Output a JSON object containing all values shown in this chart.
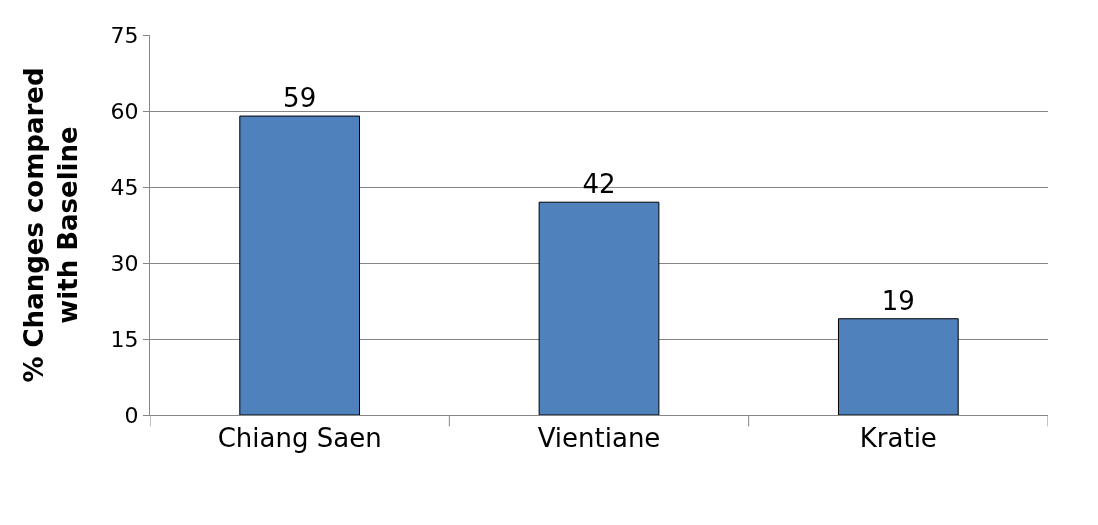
{
  "chart_data": {
    "type": "bar",
    "ylabel": "% Changes compared\nwith Baseline",
    "categories": [
      "Chiang Saen",
      "Vientiane",
      "Kratie"
    ],
    "values": [
      59,
      42,
      19
    ],
    "color": "#4f81bd",
    "ylim": [
      0,
      75
    ],
    "yticks": [
      0,
      15,
      30,
      45,
      60,
      75
    ],
    "grid": "y",
    "data_labels": true,
    "legend": false
  }
}
